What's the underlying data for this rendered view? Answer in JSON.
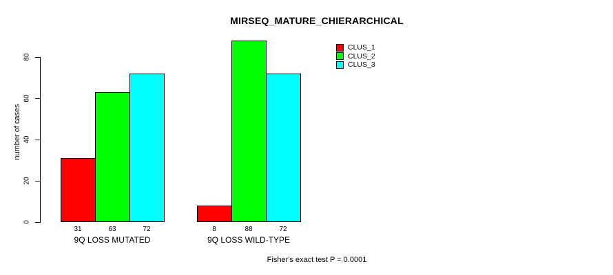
{
  "chart_data": {
    "type": "bar",
    "title": "MIRSEQ_MATURE_CHIERARCHICAL",
    "ylabel": "number of cases",
    "xlabel": "",
    "ylim": [
      0,
      80
    ],
    "yticks": [
      0,
      20,
      40,
      60,
      80
    ],
    "grid": false,
    "legend_position": "top-right",
    "categories": [
      "9Q LOSS MUTATED",
      "9Q LOSS WILD-TYPE"
    ],
    "series": [
      {
        "name": "CLUS_1",
        "color": "#FF0000",
        "values": [
          31,
          8
        ]
      },
      {
        "name": "CLUS_2",
        "color": "#00FF00",
        "values": [
          63,
          88
        ]
      },
      {
        "name": "CLUS_3",
        "color": "#00FFFF",
        "values": [
          72,
          72
        ]
      }
    ],
    "bar_labels": [
      [
        31,
        63,
        72
      ],
      [
        8,
        88,
        72
      ]
    ],
    "annotation": "Fisher's exact test P = 0.0001",
    "colors": {
      "background": "#FFFFFF",
      "axis": "#000000",
      "text": "#000000",
      "bar_border": "#000000"
    }
  }
}
